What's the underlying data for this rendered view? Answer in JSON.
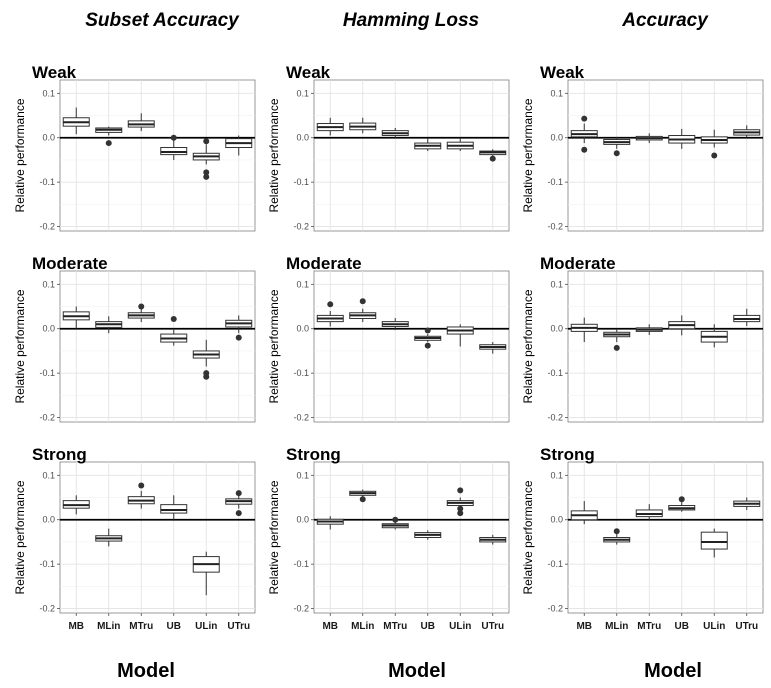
{
  "chart_data": {
    "type": "boxplot",
    "column_titles": [
      "Subset Accuracy",
      "Hamming Loss",
      "Accuracy"
    ],
    "row_labels": [
      "Weak",
      "Moderate",
      "Strong"
    ],
    "xlabel": "Model",
    "ylabel": "Relative performance",
    "categories": [
      "MB",
      "MLin",
      "MTru",
      "UB",
      "ULin",
      "UTru"
    ],
    "ylim": [
      -0.21,
      0.13
    ],
    "yticks": [
      0.1,
      0.0,
      -0.1,
      -0.2
    ],
    "ytick_labels": [
      "0.1",
      "0.0",
      "-0.1",
      "-0.2"
    ],
    "panels": [
      {
        "metric": "Subset Accuracy",
        "strength": "Weak",
        "boxes": [
          {
            "q1": 0.026,
            "median": 0.035,
            "q3": 0.045,
            "lo": 0.008,
            "hi": 0.068,
            "outliers": []
          },
          {
            "q1": 0.012,
            "median": 0.018,
            "q3": 0.022,
            "lo": 0.005,
            "hi": 0.025,
            "outliers": [
              -0.012
            ]
          },
          {
            "q1": 0.024,
            "median": 0.03,
            "q3": 0.038,
            "lo": 0.015,
            "hi": 0.055,
            "outliers": []
          },
          {
            "q1": -0.038,
            "median": -0.032,
            "q3": -0.022,
            "lo": -0.05,
            "hi": -0.005,
            "outliers": [
              0.0
            ]
          },
          {
            "q1": -0.05,
            "median": -0.042,
            "q3": -0.035,
            "lo": -0.06,
            "hi": -0.015,
            "outliers": [
              -0.078,
              -0.088,
              -0.008
            ]
          },
          {
            "q1": -0.022,
            "median": -0.012,
            "q3": -0.002,
            "lo": -0.04,
            "hi": 0.005,
            "outliers": []
          }
        ]
      },
      {
        "metric": "Hamming Loss",
        "strength": "Weak",
        "boxes": [
          {
            "q1": 0.016,
            "median": 0.024,
            "q3": 0.032,
            "lo": 0.005,
            "hi": 0.045,
            "outliers": []
          },
          {
            "q1": 0.018,
            "median": 0.025,
            "q3": 0.033,
            "lo": 0.01,
            "hi": 0.045,
            "outliers": []
          },
          {
            "q1": 0.005,
            "median": 0.01,
            "q3": 0.016,
            "lo": 0.0,
            "hi": 0.022,
            "outliers": []
          },
          {
            "q1": -0.025,
            "median": -0.018,
            "q3": -0.012,
            "lo": -0.03,
            "hi": -0.002,
            "outliers": []
          },
          {
            "q1": -0.025,
            "median": -0.018,
            "q3": -0.01,
            "lo": -0.03,
            "hi": 0.0,
            "outliers": []
          },
          {
            "q1": -0.038,
            "median": -0.033,
            "q3": -0.03,
            "lo": -0.042,
            "hi": -0.026,
            "outliers": [
              -0.047
            ]
          }
        ]
      },
      {
        "metric": "Accuracy",
        "strength": "Weak",
        "boxes": [
          {
            "q1": 0.002,
            "median": 0.008,
            "q3": 0.016,
            "lo": -0.012,
            "hi": 0.032,
            "outliers": [
              0.043,
              -0.027
            ]
          },
          {
            "q1": -0.015,
            "median": -0.01,
            "q3": -0.004,
            "lo": -0.025,
            "hi": 0.002,
            "outliers": [
              -0.035
            ]
          },
          {
            "q1": -0.005,
            "median": -0.001,
            "q3": 0.003,
            "lo": -0.012,
            "hi": 0.01,
            "outliers": []
          },
          {
            "q1": -0.012,
            "median": -0.004,
            "q3": 0.005,
            "lo": -0.025,
            "hi": 0.02,
            "outliers": []
          },
          {
            "q1": -0.012,
            "median": -0.005,
            "q3": 0.002,
            "lo": -0.022,
            "hi": 0.018,
            "outliers": [
              -0.04
            ]
          },
          {
            "q1": 0.006,
            "median": 0.012,
            "q3": 0.018,
            "lo": 0.0,
            "hi": 0.028,
            "outliers": []
          }
        ]
      },
      {
        "metric": "Subset Accuracy",
        "strength": "Moderate",
        "boxes": [
          {
            "q1": 0.02,
            "median": 0.028,
            "q3": 0.038,
            "lo": 0.0,
            "hi": 0.05,
            "outliers": []
          },
          {
            "q1": 0.003,
            "median": 0.01,
            "q3": 0.016,
            "lo": -0.01,
            "hi": 0.028,
            "outliers": []
          },
          {
            "q1": 0.024,
            "median": 0.03,
            "q3": 0.036,
            "lo": 0.015,
            "hi": 0.045,
            "outliers": [
              0.05
            ]
          },
          {
            "q1": -0.03,
            "median": -0.022,
            "q3": -0.012,
            "lo": -0.038,
            "hi": 0.0,
            "outliers": [
              0.022
            ]
          },
          {
            "q1": -0.066,
            "median": -0.058,
            "q3": -0.05,
            "lo": -0.085,
            "hi": -0.025,
            "outliers": [
              -0.1,
              -0.108
            ]
          },
          {
            "q1": 0.004,
            "median": 0.012,
            "q3": 0.019,
            "lo": -0.01,
            "hi": 0.03,
            "outliers": [
              -0.02
            ]
          }
        ]
      },
      {
        "metric": "Hamming Loss",
        "strength": "Moderate",
        "boxes": [
          {
            "q1": 0.016,
            "median": 0.023,
            "q3": 0.03,
            "lo": 0.005,
            "hi": 0.04,
            "outliers": [
              0.055
            ]
          },
          {
            "q1": 0.023,
            "median": 0.03,
            "q3": 0.036,
            "lo": 0.015,
            "hi": 0.045,
            "outliers": [
              0.062
            ]
          },
          {
            "q1": 0.005,
            "median": 0.01,
            "q3": 0.016,
            "lo": -0.003,
            "hi": 0.024,
            "outliers": []
          },
          {
            "q1": -0.026,
            "median": -0.021,
            "q3": -0.017,
            "lo": -0.03,
            "hi": -0.012,
            "outliers": [
              -0.004,
              -0.038
            ]
          },
          {
            "q1": -0.012,
            "median": -0.004,
            "q3": 0.004,
            "lo": -0.04,
            "hi": 0.01,
            "outliers": []
          },
          {
            "q1": -0.046,
            "median": -0.041,
            "q3": -0.036,
            "lo": -0.056,
            "hi": -0.03,
            "outliers": []
          }
        ]
      },
      {
        "metric": "Accuracy",
        "strength": "Moderate",
        "boxes": [
          {
            "q1": -0.006,
            "median": 0.002,
            "q3": 0.01,
            "lo": -0.03,
            "hi": 0.025,
            "outliers": []
          },
          {
            "q1": -0.018,
            "median": -0.013,
            "q3": -0.008,
            "lo": -0.03,
            "hi": 0.0,
            "outliers": [
              -0.043
            ]
          },
          {
            "q1": -0.006,
            "median": -0.002,
            "q3": 0.002,
            "lo": -0.014,
            "hi": 0.01,
            "outliers": []
          },
          {
            "q1": 0.0,
            "median": 0.008,
            "q3": 0.016,
            "lo": -0.015,
            "hi": 0.03,
            "outliers": []
          },
          {
            "q1": -0.03,
            "median": -0.018,
            "q3": -0.006,
            "lo": -0.042,
            "hi": 0.01,
            "outliers": []
          },
          {
            "q1": 0.016,
            "median": 0.022,
            "q3": 0.03,
            "lo": 0.006,
            "hi": 0.045,
            "outliers": []
          }
        ]
      },
      {
        "metric": "Subset Accuracy",
        "strength": "Strong",
        "boxes": [
          {
            "q1": 0.026,
            "median": 0.033,
            "q3": 0.043,
            "lo": 0.012,
            "hi": 0.055,
            "outliers": []
          },
          {
            "q1": -0.048,
            "median": -0.042,
            "q3": -0.036,
            "lo": -0.06,
            "hi": -0.02,
            "outliers": []
          },
          {
            "q1": 0.036,
            "median": 0.043,
            "q3": 0.052,
            "lo": 0.025,
            "hi": 0.065,
            "outliers": [
              0.077
            ]
          },
          {
            "q1": 0.015,
            "median": 0.022,
            "q3": 0.034,
            "lo": 0.0,
            "hi": 0.055,
            "outliers": []
          },
          {
            "q1": -0.118,
            "median": -0.1,
            "q3": -0.083,
            "lo": -0.17,
            "hi": -0.072,
            "outliers": []
          },
          {
            "q1": 0.035,
            "median": 0.042,
            "q3": 0.047,
            "lo": 0.025,
            "hi": 0.055,
            "outliers": [
              0.06,
              0.015
            ]
          }
        ]
      },
      {
        "metric": "Hamming Loss",
        "strength": "Strong",
        "boxes": [
          {
            "q1": -0.01,
            "median": -0.004,
            "q3": 0.001,
            "lo": -0.022,
            "hi": 0.008,
            "outliers": []
          },
          {
            "q1": 0.055,
            "median": 0.06,
            "q3": 0.064,
            "lo": 0.05,
            "hi": 0.068,
            "outliers": [
              0.046
            ]
          },
          {
            "q1": -0.018,
            "median": -0.013,
            "q3": -0.009,
            "lo": -0.022,
            "hi": -0.003,
            "outliers": [
              0.0
            ]
          },
          {
            "q1": -0.04,
            "median": -0.034,
            "q3": -0.029,
            "lo": -0.045,
            "hi": -0.024,
            "outliers": []
          },
          {
            "q1": 0.032,
            "median": 0.038,
            "q3": 0.043,
            "lo": 0.028,
            "hi": 0.05,
            "outliers": [
              0.066,
              0.025,
              0.015
            ]
          },
          {
            "q1": -0.05,
            "median": -0.045,
            "q3": -0.04,
            "lo": -0.056,
            "hi": -0.034,
            "outliers": []
          }
        ]
      },
      {
        "metric": "Accuracy",
        "strength": "Strong",
        "boxes": [
          {
            "q1": 0.0,
            "median": 0.01,
            "q3": 0.02,
            "lo": -0.01,
            "hi": 0.042,
            "outliers": []
          },
          {
            "q1": -0.05,
            "median": -0.045,
            "q3": -0.04,
            "lo": -0.056,
            "hi": -0.032,
            "outliers": [
              -0.026
            ]
          },
          {
            "q1": 0.007,
            "median": 0.013,
            "q3": 0.022,
            "lo": 0.0,
            "hi": 0.035,
            "outliers": []
          },
          {
            "q1": 0.022,
            "median": 0.026,
            "q3": 0.032,
            "lo": 0.018,
            "hi": 0.04,
            "outliers": [
              0.046
            ]
          },
          {
            "q1": -0.066,
            "median": -0.05,
            "q3": -0.028,
            "lo": -0.085,
            "hi": -0.02,
            "outliers": []
          },
          {
            "q1": 0.03,
            "median": 0.036,
            "q3": 0.042,
            "lo": 0.022,
            "hi": 0.05,
            "outliers": []
          }
        ]
      }
    ]
  }
}
